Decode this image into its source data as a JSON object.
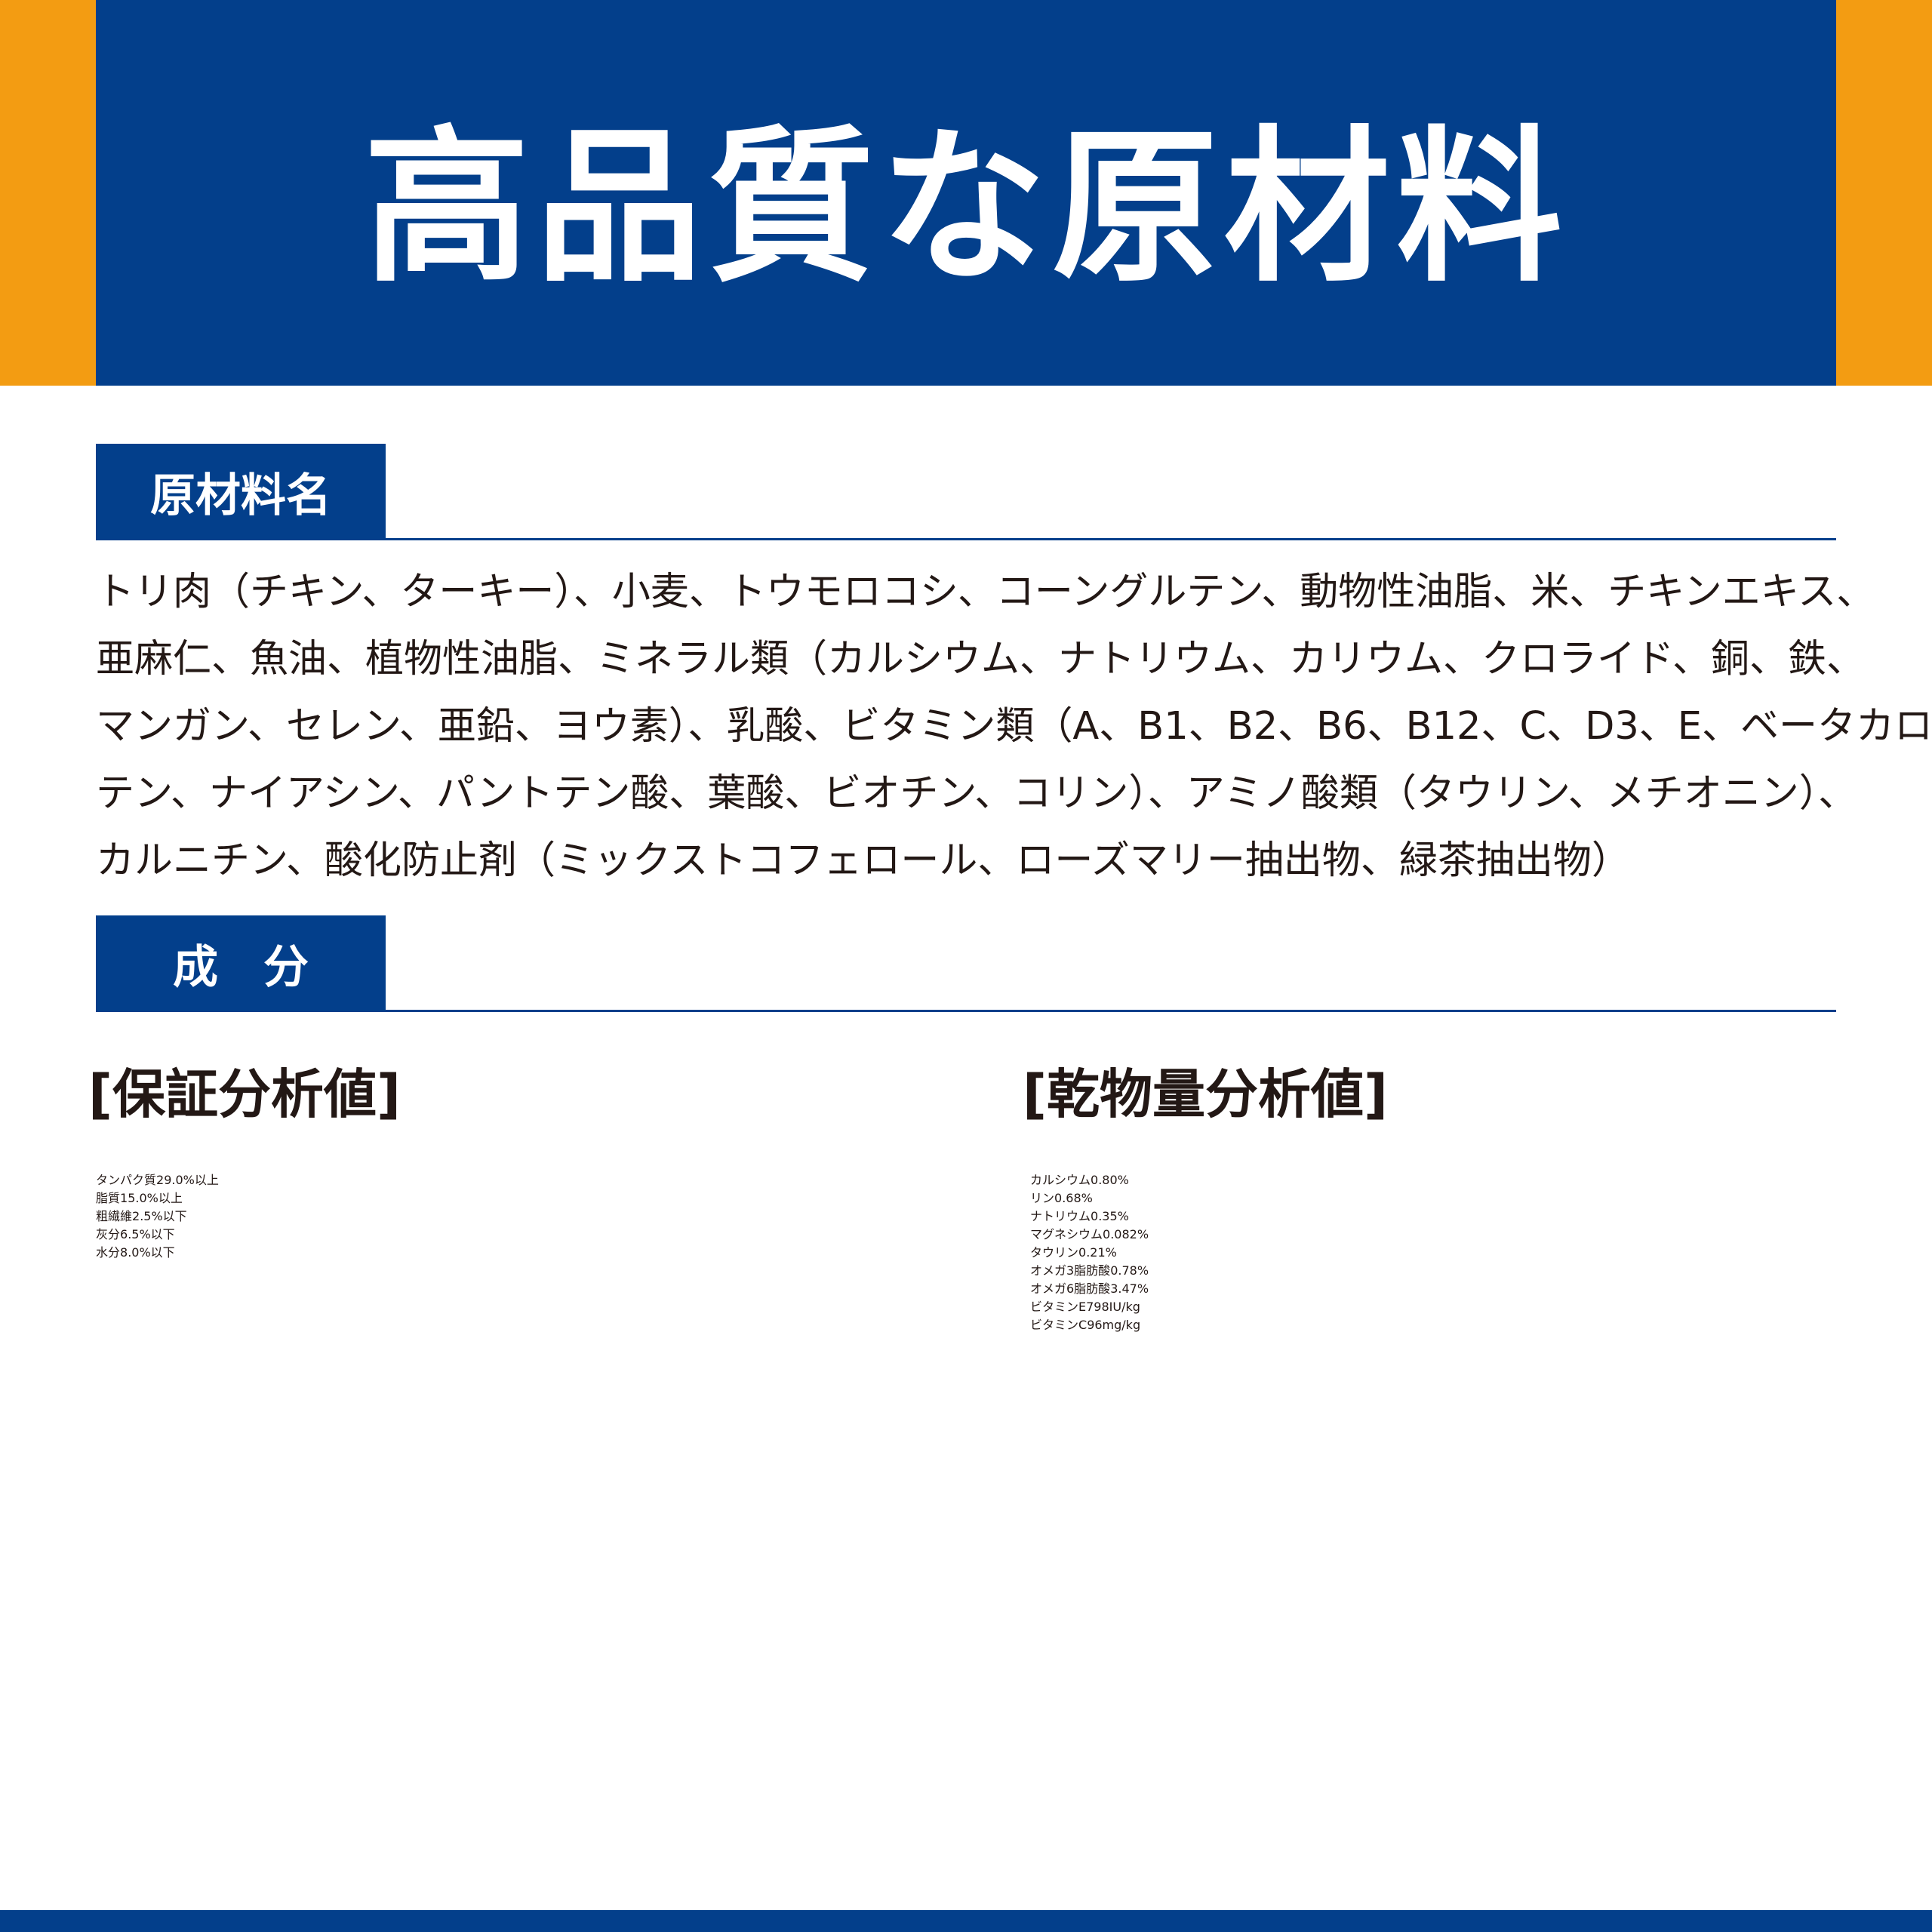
{
  "title": "高品質な原材料",
  "ingredients": {
    "label": "原材料名",
    "lines": [
      "トリ肉（チキン、ターキー）、小麦、トウモロコシ、コーングルテン、動物性油脂、米、チキンエキス、",
      "亜麻仁、魚油、植物性油脂、ミネラル類（カルシウム、ナトリウム、カリウム、クロライド、銅、鉄、",
      "マンガン、セレン、亜鉛、ヨウ素）、乳酸、ビタミン類（A、B1、B2、B6、B12、C、D3、E、ベータカロ",
      "テン、ナイアシン、パントテン酸、葉酸、ビオチン、コリン）、アミノ酸類（タウリン、メチオニン）、",
      "カルニチン、酸化防止剤（ミックストコフェロール、ローズマリー抽出物、緑茶抽出物）"
    ]
  },
  "composition": {
    "label": "成分",
    "guaranteed": {
      "heading": "[保証分析値]",
      "rows": [
        [
          "タンパク質",
          "29.0%以上"
        ],
        [
          "脂質",
          "15.0%以上"
        ],
        [
          "粗繊維",
          "2.5%以下"
        ],
        [
          "灰分",
          "6.5%以下"
        ],
        [
          "水分",
          "8.0%以下"
        ]
      ]
    },
    "dry_matter": {
      "heading": "[乾物量分析値]",
      "rows": [
        [
          "カルシウム",
          "0.80%"
        ],
        [
          "リン",
          "0.68%"
        ],
        [
          "ナトリウム",
          "0.35%"
        ],
        [
          "マグネシウム",
          "0.082%"
        ],
        [
          "タウリン",
          "0.21%"
        ],
        [
          "オメガ3脂肪酸",
          "0.78%"
        ],
        [
          "オメガ6脂肪酸",
          "3.47%"
        ],
        [
          "ビタミンE",
          "798IU/kg"
        ],
        [
          "ビタミンC",
          "96mg/kg"
        ]
      ]
    }
  }
}
